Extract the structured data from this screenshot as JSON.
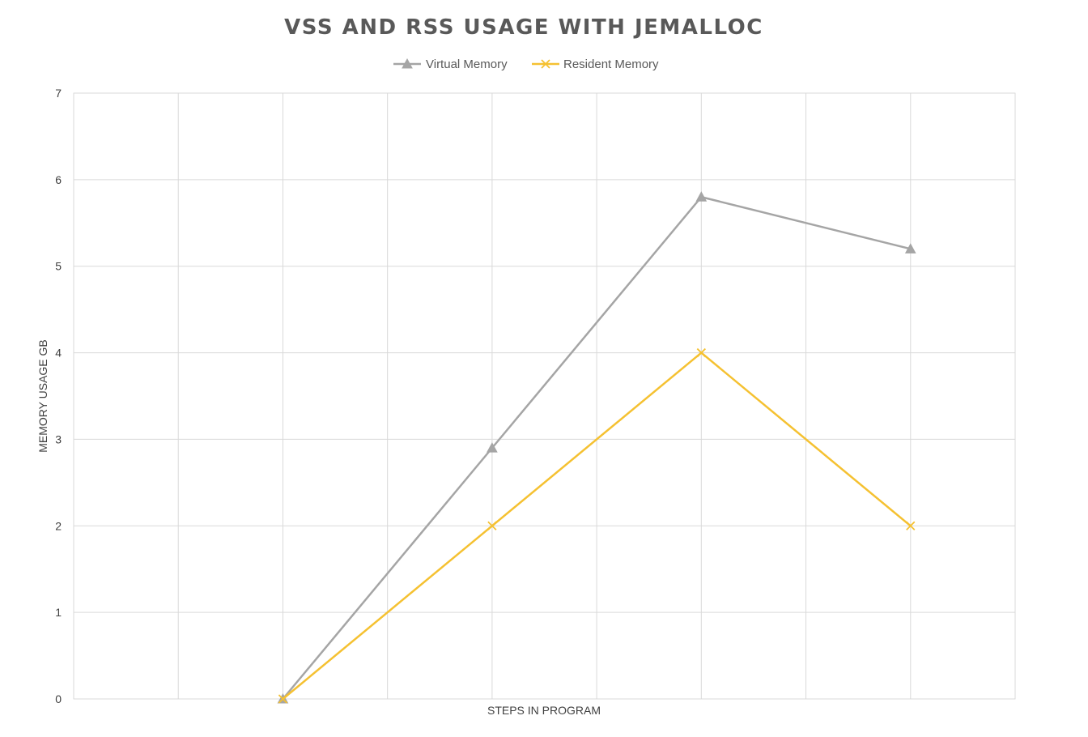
{
  "chart_data": {
    "type": "line",
    "title": "VSS AND RSS USAGE WITH JEMALLOC",
    "xlabel": "STEPS IN PROGRAM",
    "ylabel": "MEMORY USAGE GB",
    "x": [
      1,
      2,
      3,
      4,
      5,
      6,
      7,
      8,
      9
    ],
    "xlim": [
      0,
      9
    ],
    "ylim": [
      0,
      7
    ],
    "yticks": [
      0,
      1,
      2,
      3,
      4,
      5,
      6,
      7
    ],
    "grid": true,
    "legend_position": "top",
    "series": [
      {
        "name": "Virtual Memory",
        "color": "#a5a5a5",
        "marker": "triangle",
        "points": [
          [
            2,
            0
          ],
          [
            4,
            2.9
          ],
          [
            6,
            5.8
          ],
          [
            8,
            5.2
          ]
        ]
      },
      {
        "name": "Resident Memory",
        "color": "#f5c131",
        "marker": "x",
        "points": [
          [
            2,
            0
          ],
          [
            4,
            2
          ],
          [
            6,
            4
          ],
          [
            8,
            2
          ]
        ]
      }
    ]
  }
}
